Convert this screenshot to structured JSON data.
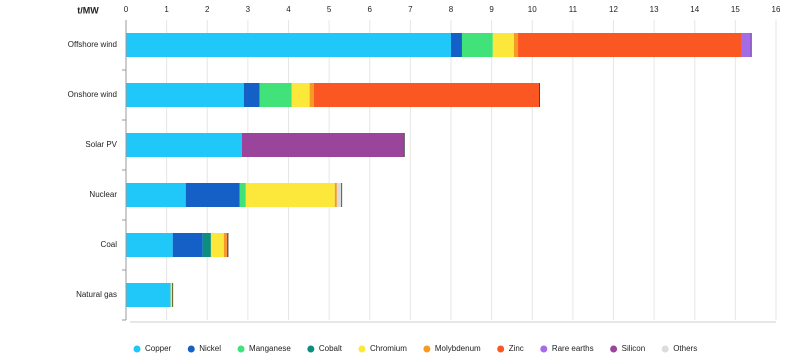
{
  "chart_data": {
    "type": "stacked_barh",
    "axis_label": "t/MW",
    "categories": [
      "Offshore wind",
      "Onshore wind",
      "Solar PV",
      "Nuclear",
      "Coal",
      "Natural gas"
    ],
    "series": [
      {
        "name": "Copper",
        "color": "#1fc8f8",
        "values": [
          8.0,
          2.9,
          2.85,
          1.47,
          1.15,
          1.1
        ]
      },
      {
        "name": "Nickel",
        "color": "#1560c7",
        "values": [
          0.27,
          0.39,
          0,
          1.33,
          0.74,
          0
        ]
      },
      {
        "name": "Manganese",
        "color": "#42e27a",
        "values": [
          0.76,
          0.79,
          0,
          0.15,
          0,
          0
        ]
      },
      {
        "name": "Cobalt",
        "color": "#0a8f7e",
        "values": [
          0,
          0,
          0,
          0,
          0.2,
          0
        ]
      },
      {
        "name": "Chromium",
        "color": "#fbe83a",
        "values": [
          0.52,
          0.44,
          0,
          2.19,
          0.32,
          0.05
        ]
      },
      {
        "name": "Molybdenum",
        "color": "#f59a23",
        "values": [
          0.1,
          0.1,
          0,
          0.05,
          0.07,
          0
        ]
      },
      {
        "name": "Zinc",
        "color": "#fb5722",
        "values": [
          5.5,
          5.56,
          0,
          0,
          0.03,
          0
        ]
      },
      {
        "name": "Rare earths",
        "color": "#a66be6",
        "values": [
          0.24,
          0,
          0,
          0,
          0,
          0
        ]
      },
      {
        "name": "Silicon",
        "color": "#9b449c",
        "values": [
          0,
          0,
          4.0,
          0,
          0,
          0
        ]
      },
      {
        "name": "Others",
        "color": "#dcdcdc",
        "values": [
          0,
          0,
          0,
          0.12,
          0,
          0
        ]
      }
    ],
    "xlim": [
      0,
      16
    ],
    "xticks": [
      0,
      1,
      2,
      3,
      4,
      5,
      6,
      7,
      8,
      9,
      10,
      11,
      12,
      13,
      14,
      15,
      16
    ],
    "grid": true
  }
}
